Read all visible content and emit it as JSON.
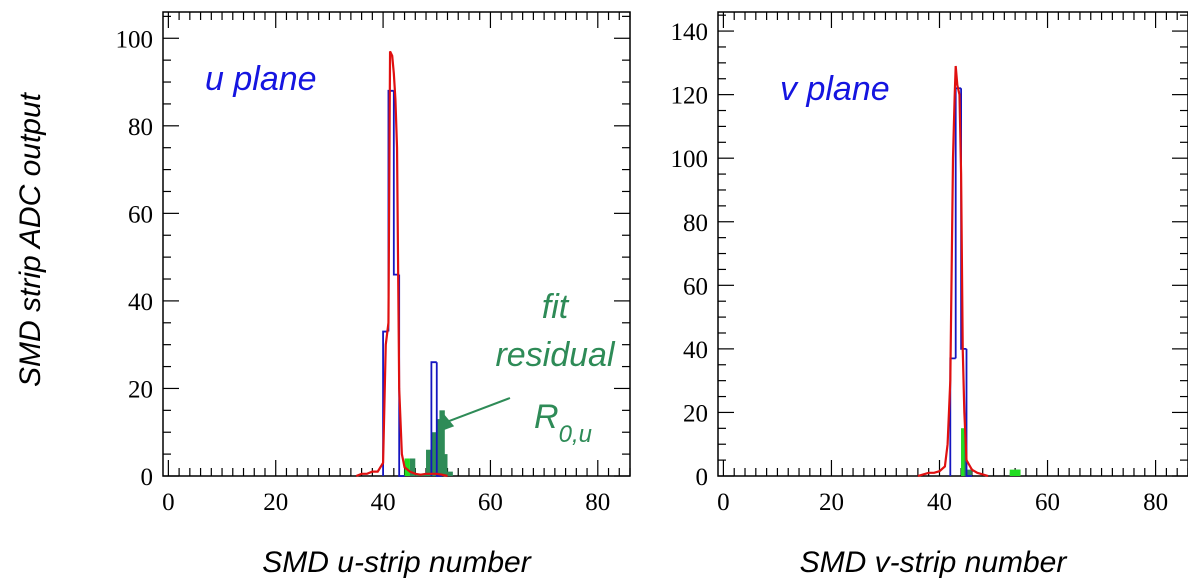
{
  "ylabel": "SMD strip ADC output",
  "colors": {
    "fit_line": "#e01010",
    "data_hist": "#1515c0",
    "residual_fill": "#2e8b57",
    "residual_light": "#22dd22",
    "annotation": "#2e8b57",
    "plane_label": "#1515e0"
  },
  "chart_data": [
    {
      "type": "histogram",
      "plane_label": "u plane",
      "xlabel": "SMD u-strip number",
      "ylabel": "SMD strip ADC output",
      "xlim": [
        -1,
        86
      ],
      "ylim": [
        0,
        106
      ],
      "xticks": [
        0,
        20,
        40,
        60,
        80
      ],
      "yticks": [
        0,
        20,
        40,
        60,
        80,
        100
      ],
      "annotation": {
        "lines": [
          "fit",
          "residual"
        ],
        "symbol": "R",
        "subscript": "0,u",
        "points_to_strip": 51
      },
      "series": [
        {
          "name": "data",
          "bins": [
            [
              40,
              0,
              33
            ],
            [
              41,
              33,
              88
            ],
            [
              42,
              88,
              46
            ],
            [
              43,
              46,
              0
            ],
            [
              49,
              0,
              26
            ],
            [
              50,
              26,
              0
            ]
          ]
        },
        {
          "name": "fit",
          "points": [
            [
              35,
              0
            ],
            [
              36,
              0.5
            ],
            [
              37,
              0.5
            ],
            [
              38,
              1
            ],
            [
              39,
              1
            ],
            [
              40,
              3
            ],
            [
              40.5,
              30
            ],
            [
              41,
              35
            ],
            [
              41.3,
              97
            ],
            [
              41.7,
              96
            ],
            [
              42,
              92
            ],
            [
              42.3,
              86
            ],
            [
              42.6,
              75
            ],
            [
              43,
              20
            ],
            [
              43.5,
              5
            ],
            [
              44,
              2
            ],
            [
              45,
              1
            ],
            [
              46,
              0.5
            ],
            [
              47,
              0.3
            ],
            [
              48,
              0.5
            ],
            [
              49,
              0.5
            ],
            [
              50,
              0.5
            ],
            [
              51,
              0.3
            ],
            [
              52,
              0
            ]
          ]
        },
        {
          "name": "residual",
          "bins": [
            [
              44,
              1
            ],
            [
              45,
              4
            ],
            [
              46,
              0.5
            ],
            [
              47,
              0.5
            ],
            [
              48,
              6
            ],
            [
              49,
              10
            ],
            [
              50,
              13
            ],
            [
              50.5,
              15
            ],
            [
              51,
              5
            ],
            [
              52,
              1
            ]
          ]
        }
      ]
    },
    {
      "type": "histogram",
      "plane_label": "v plane",
      "xlabel": "SMD v-strip number",
      "ylabel": "",
      "xlim": [
        -1,
        86
      ],
      "ylim": [
        0,
        146
      ],
      "xticks": [
        0,
        20,
        40,
        60,
        80
      ],
      "yticks": [
        0,
        20,
        40,
        60,
        80,
        100,
        120,
        140
      ],
      "series": [
        {
          "name": "data",
          "bins": [
            [
              42,
              0,
              37
            ],
            [
              43,
              37,
              122
            ],
            [
              44,
              122,
              40
            ],
            [
              45,
              40,
              0
            ]
          ]
        },
        {
          "name": "fit",
          "points": [
            [
              36,
              0
            ],
            [
              37,
              0.5
            ],
            [
              38,
              1
            ],
            [
              39,
              1
            ],
            [
              40,
              1.5
            ],
            [
              41,
              3
            ],
            [
              41.5,
              10
            ],
            [
              42,
              30
            ],
            [
              42.5,
              100
            ],
            [
              42.8,
              119
            ],
            [
              43,
              129
            ],
            [
              43.3,
              123
            ],
            [
              43.7,
              120
            ],
            [
              44,
              95
            ],
            [
              44.3,
              40
            ],
            [
              44.6,
              20
            ],
            [
              45,
              5
            ],
            [
              46,
              2
            ],
            [
              47,
              1
            ],
            [
              48,
              0.5
            ],
            [
              49,
              0
            ]
          ]
        },
        {
          "name": "residual",
          "bins": [
            [
              44,
              15
            ],
            [
              45,
              2
            ],
            [
              53,
              1
            ],
            [
              54,
              2
            ]
          ]
        }
      ]
    }
  ]
}
